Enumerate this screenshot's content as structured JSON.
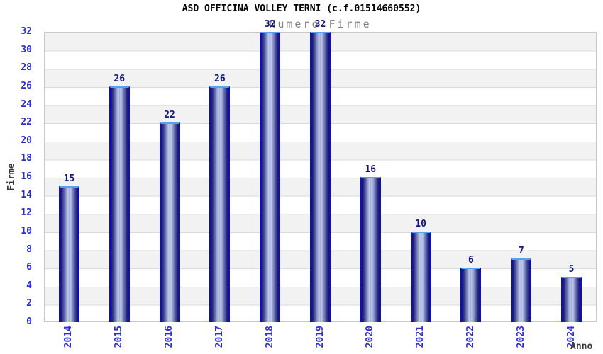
{
  "title": "ASD OFFICINA VOLLEY TERNI (c.f.01514660552)",
  "subtitle": "Numero Firme",
  "chart_data": {
    "type": "bar",
    "categories": [
      "2014",
      "2015",
      "2016",
      "2017",
      "2018",
      "2019",
      "2020",
      "2021",
      "2022",
      "2023",
      "2024"
    ],
    "values": [
      15,
      26,
      22,
      26,
      32,
      32,
      16,
      10,
      6,
      7,
      5
    ],
    "title": "ASD OFFICINA VOLLEY TERNI (c.f.01514660552)",
    "subtitle": "Numero Firme",
    "xlabel": "Anno",
    "ylabel": "Firme",
    "ylim": [
      0,
      32
    ],
    "ytick_step": 2,
    "grid": "horizontal-bands",
    "legend": "none",
    "colors": {
      "bar_edge": "#0f0fb4",
      "bar_top_edge": "#55a1f3",
      "bar_dark": "#14146a",
      "bar_light": "#c4cbec",
      "tick_label": "#2e2ed2",
      "value_label": "#15157d",
      "axis_title": "#3a3a3a",
      "subtitle": "#828282",
      "band_gray": "#f2f2f2",
      "gridline": "#dadada",
      "plot_border": "#c8c8c8"
    }
  }
}
